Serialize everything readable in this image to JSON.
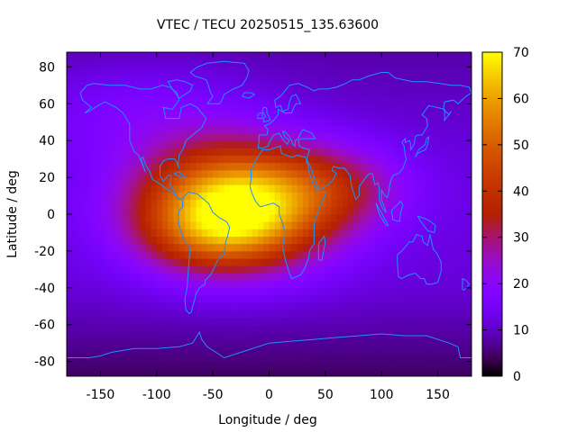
{
  "chart_data": {
    "type": "heatmap",
    "title": "VTEC / TECU 20250515_135.63600",
    "xlabel": "Longitude / deg",
    "ylabel": "Latitude / deg",
    "xlim": [
      -180,
      180
    ],
    "ylim": [
      -88,
      88
    ],
    "xticks": [
      -150,
      -100,
      -50,
      0,
      50,
      100,
      150
    ],
    "yticks": [
      80,
      60,
      40,
      20,
      0,
      -20,
      -40,
      -60,
      -80
    ],
    "colorbar": {
      "range": [
        0,
        70
      ],
      "ticks": [
        70,
        60,
        50,
        40,
        30,
        20,
        10,
        0
      ],
      "colormap": "gnuplot-pm3d-black-blue-purple-red-orange-yellow"
    },
    "grid": false,
    "crest": {
      "north": {
        "lon": -30,
        "lat": 15,
        "peak": 70
      },
      "south": {
        "lon": -50,
        "lat": -12,
        "peak": 58
      }
    },
    "base_level_tecu": 8,
    "overlay": "coastlines"
  },
  "colors": {
    "coastline": "#1e90ff",
    "axis": "#000000",
    "background": "#ffffff"
  }
}
